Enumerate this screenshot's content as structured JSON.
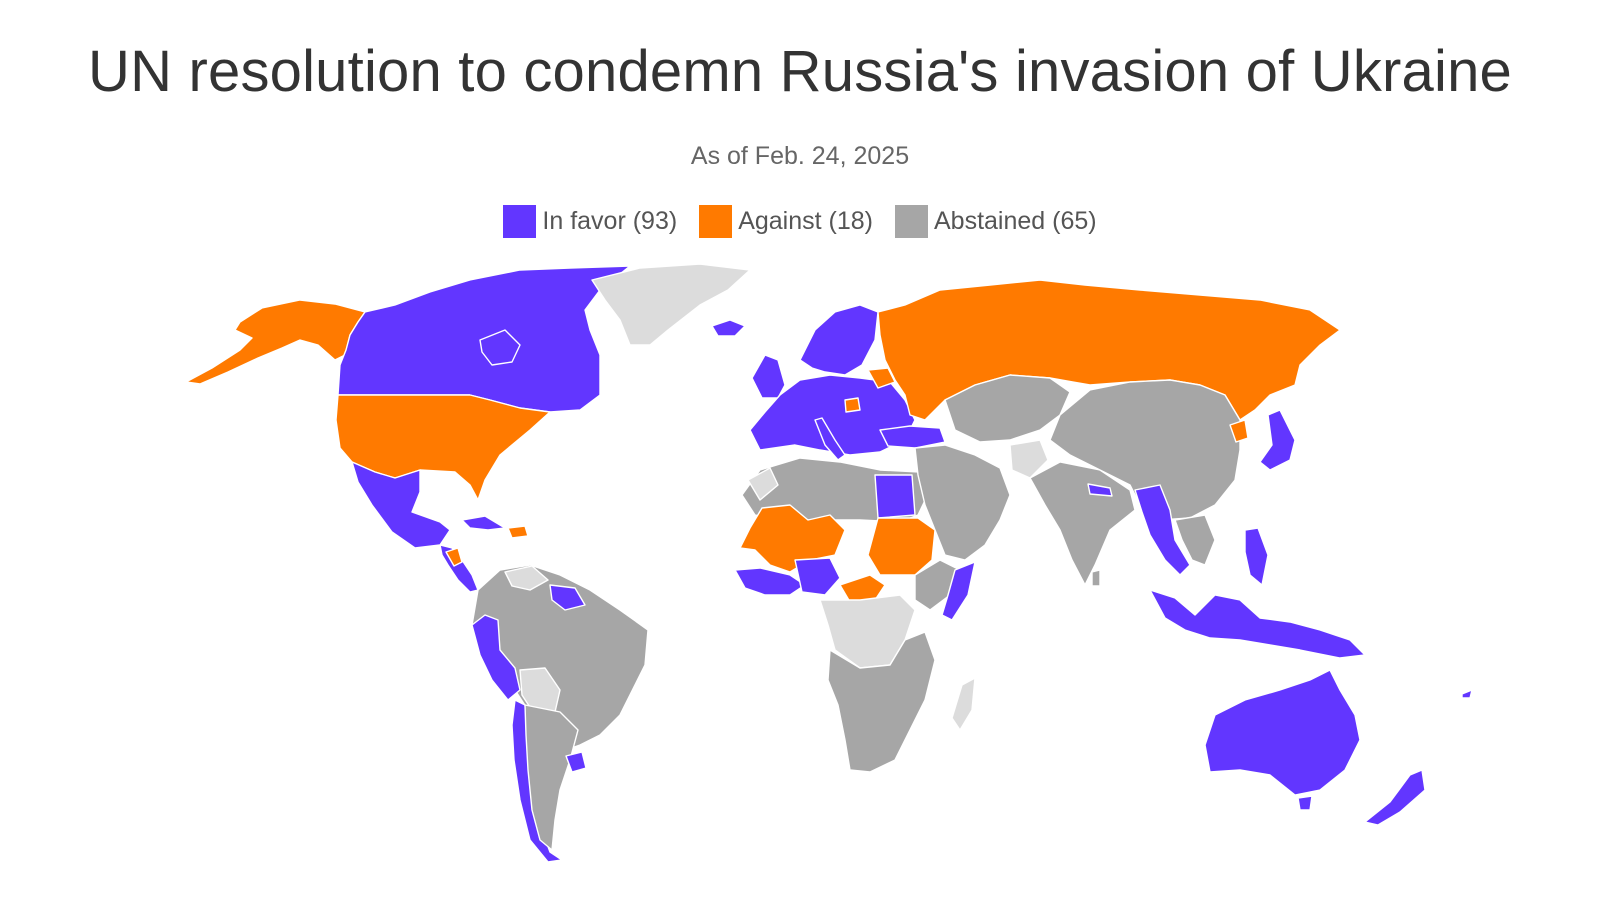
{
  "title": "UN resolution to condemn Russia's invasion of Ukraine",
  "subtitle": "As of Feb. 24, 2025",
  "legend": [
    {
      "label": "In favor (93)",
      "color": "#6236ff",
      "category": "favor"
    },
    {
      "label": "Against (18)",
      "color": "#ff7a00",
      "category": "against"
    },
    {
      "label": "Abstained (65)",
      "color": "#a6a6a6",
      "category": "abstained"
    }
  ],
  "colors": {
    "favor": "#6236ff",
    "against": "#ff7a00",
    "abstained": "#a6a6a6",
    "no_vote": "#dcdcdc"
  }
}
